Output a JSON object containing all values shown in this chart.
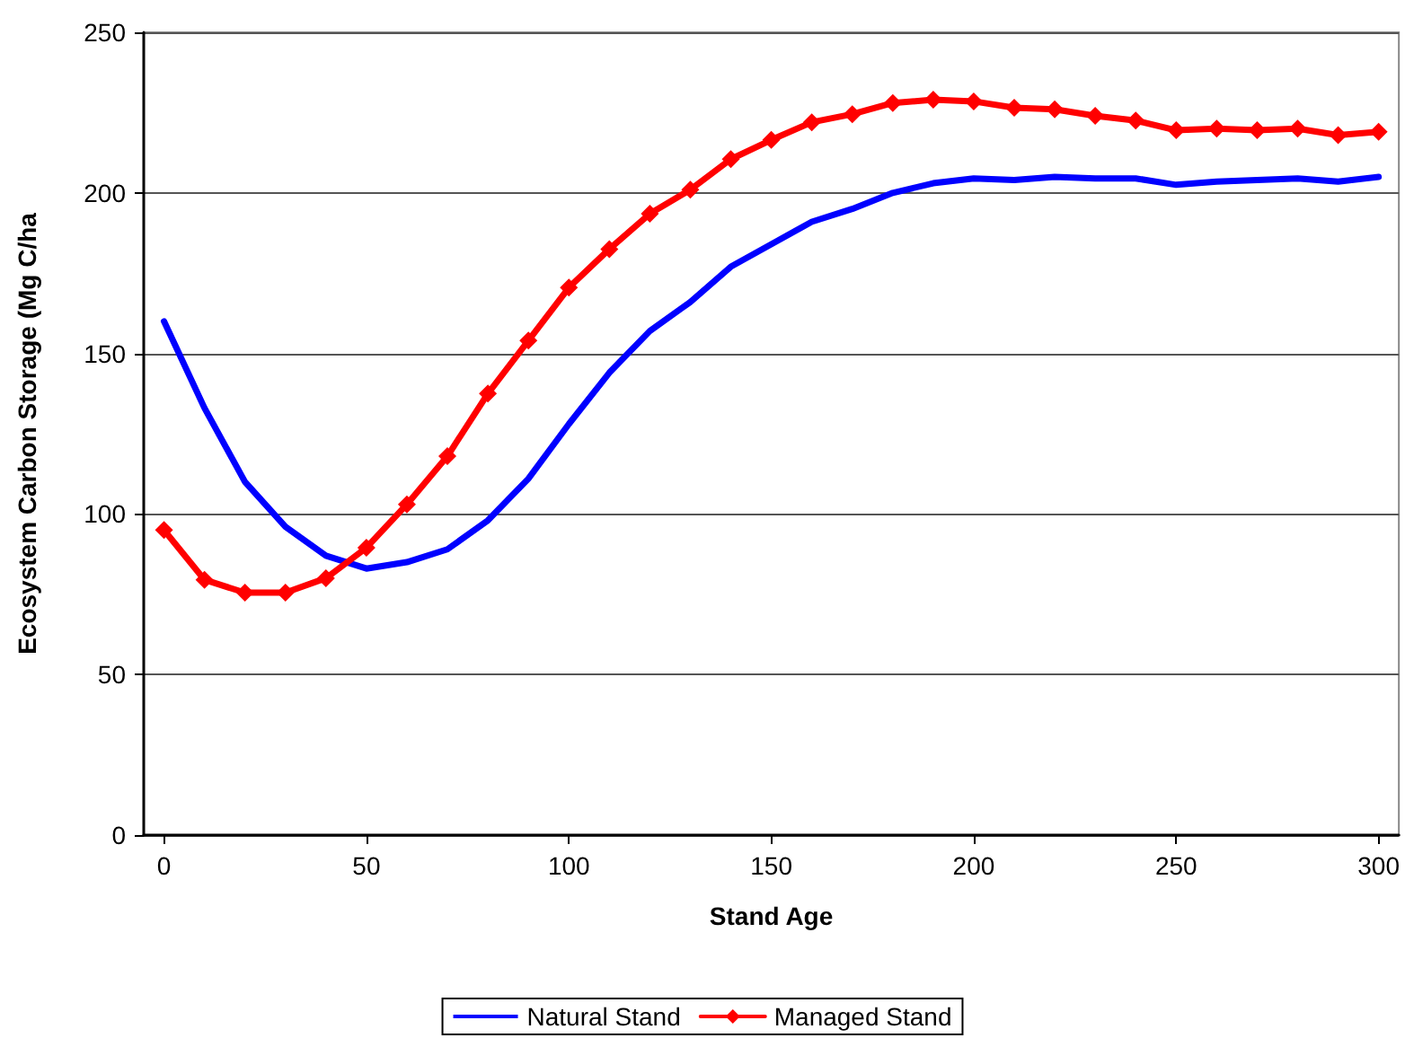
{
  "chart_data": {
    "type": "line",
    "xlabel": "Stand Age",
    "ylabel": "Ecosystem Carbon Storage (Mg C/ha",
    "x": [
      0,
      10,
      20,
      30,
      40,
      50,
      60,
      70,
      80,
      90,
      100,
      110,
      120,
      130,
      140,
      150,
      160,
      170,
      180,
      190,
      200,
      210,
      220,
      230,
      240,
      250,
      260,
      270,
      280,
      290,
      300
    ],
    "series": [
      {
        "name": "Natural Stand",
        "color": "#0000ff",
        "marker": "none",
        "values": [
          160,
          133,
          110,
          96,
          87,
          83,
          85,
          89,
          98,
          111,
          128,
          144,
          157,
          166,
          177,
          184,
          191,
          195,
          200,
          203,
          204.5,
          204,
          205,
          204.5,
          204.5,
          202.5,
          203.5,
          204,
          204.5,
          203.5,
          205
        ]
      },
      {
        "name": "Managed Stand",
        "color": "#ff0000",
        "marker": "diamond",
        "values": [
          95,
          79.5,
          75.5,
          75.5,
          80,
          89.5,
          103,
          118,
          137.5,
          154,
          170.5,
          182.5,
          193.5,
          201,
          210.5,
          216.5,
          222,
          224.5,
          228,
          229,
          228.5,
          226.5,
          226,
          224,
          222.5,
          219.5,
          220,
          219.5,
          220,
          218,
          219
        ]
      }
    ],
    "xlim": [
      -5,
      305
    ],
    "xticks": [
      0,
      50,
      100,
      150,
      200,
      250,
      300
    ],
    "ylim": [
      0,
      250
    ],
    "yticks": [
      0,
      50,
      100,
      150,
      200,
      250
    ],
    "grid": "y",
    "legend": "bottom",
    "line_style": "solid"
  }
}
